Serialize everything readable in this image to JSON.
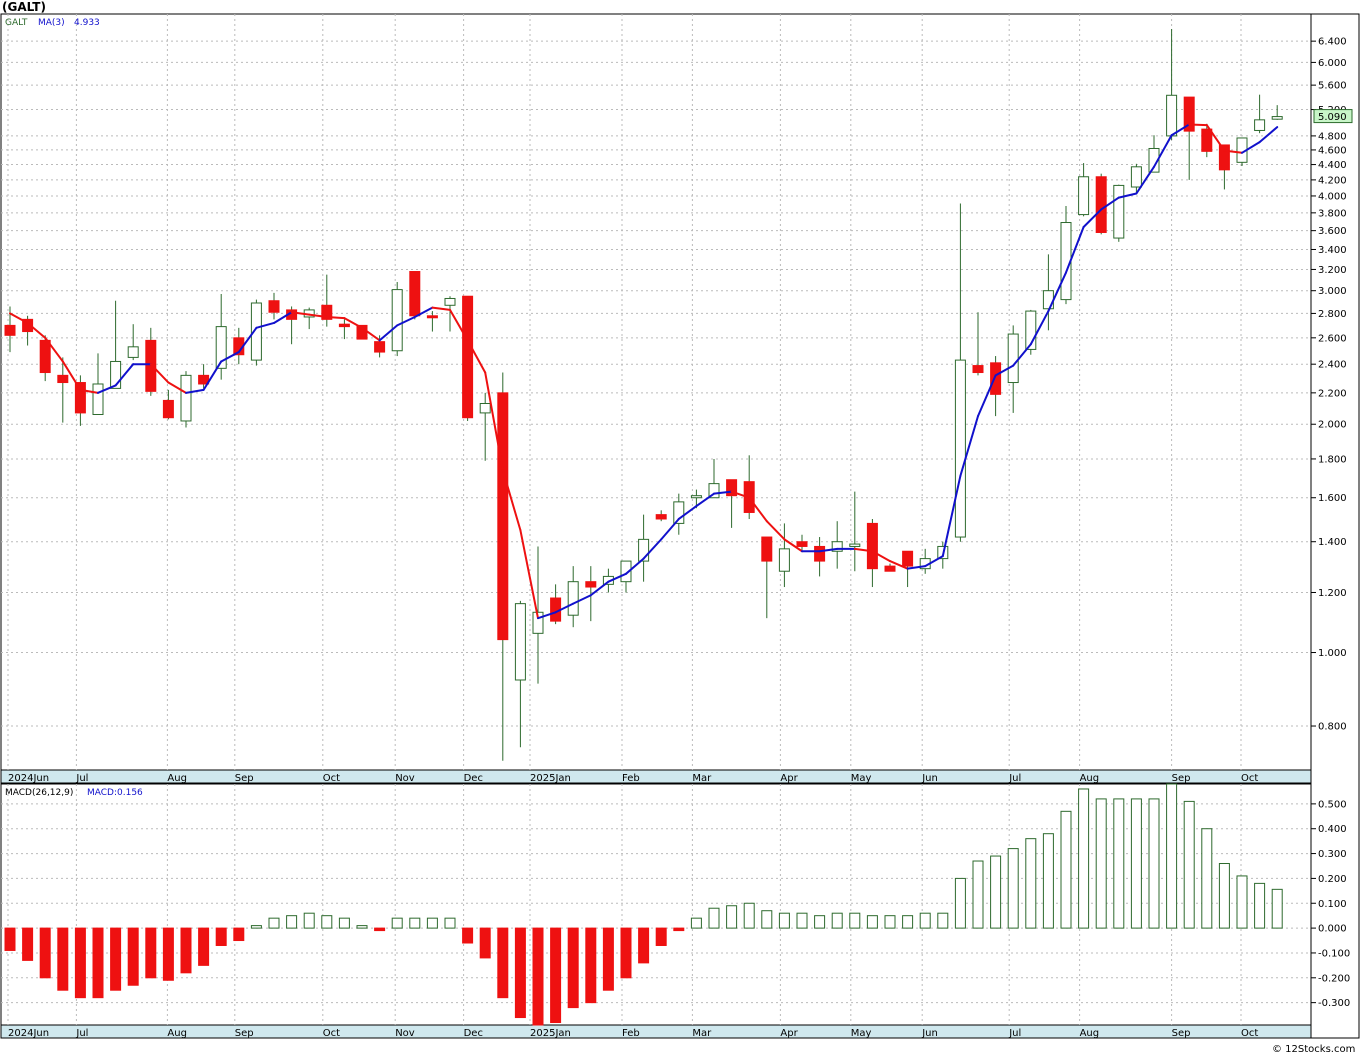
{
  "title": "(GALT)",
  "legend": {
    "symbol": "GALT",
    "ma_label": "MA(3)",
    "ma_value": "4.933",
    "macd_label": "MACD(26,12,9)",
    "macd_value": "MACD:0.156"
  },
  "last_price": "5.090",
  "watermark": "© 12Stocks.com",
  "colors": {
    "up": "#2d6a2d",
    "down": "#ee1111",
    "ma_up": "#1111cc",
    "ma_down": "#ee1111",
    "axis_band": "#cfe8ee",
    "last_price_bg": "#c8f5c8",
    "grid": "#bbbbbb"
  },
  "chart_data": [
    {
      "type": "candlestick",
      "period": "weekly",
      "y_scale": "log",
      "ylim": [
        0.7,
        6.95
      ],
      "y_ticks": [
        "0.800",
        "1.000",
        "1.200",
        "1.400",
        "1.600",
        "1.800",
        "2.000",
        "2.200",
        "2.400",
        "2.600",
        "2.800",
        "3.000",
        "3.200",
        "3.400",
        "3.600",
        "3.800",
        "4.000",
        "4.200",
        "4.400",
        "4.600",
        "4.800",
        "5.200",
        "5.600",
        "6.000",
        "6.400"
      ],
      "x_labels": [
        "2024Jun",
        "Jul",
        "Aug",
        "Sep",
        "Oct",
        "Nov",
        "Dec",
        "2025Jan",
        "Feb",
        "Mar",
        "Apr",
        "May",
        "Jun",
        "Jul",
        "Aug",
        "Sep",
        "Oct"
      ],
      "series": [
        {
          "name": "GALT",
          "ohlc": [
            [
              2.7,
              2.86,
              2.49,
              2.62
            ],
            [
              2.75,
              2.78,
              2.54,
              2.65
            ],
            [
              2.58,
              2.62,
              2.28,
              2.34
            ],
            [
              2.32,
              2.45,
              2.01,
              2.27
            ],
            [
              2.27,
              2.32,
              1.99,
              2.07
            ],
            [
              2.06,
              2.48,
              2.06,
              2.26
            ],
            [
              2.23,
              2.91,
              2.23,
              2.42
            ],
            [
              2.45,
              2.71,
              2.43,
              2.53
            ],
            [
              2.58,
              2.68,
              2.18,
              2.21
            ],
            [
              2.15,
              2.22,
              2.03,
              2.04
            ],
            [
              2.02,
              2.35,
              1.98,
              2.32
            ],
            [
              2.32,
              2.4,
              2.23,
              2.26
            ],
            [
              2.37,
              2.97,
              2.29,
              2.69
            ],
            [
              2.6,
              2.68,
              2.4,
              2.47
            ],
            [
              2.43,
              2.92,
              2.39,
              2.89
            ],
            [
              2.91,
              2.98,
              2.75,
              2.81
            ],
            [
              2.83,
              2.86,
              2.55,
              2.75
            ],
            [
              2.77,
              2.85,
              2.67,
              2.83
            ],
            [
              2.87,
              3.15,
              2.69,
              2.75
            ],
            [
              2.71,
              2.75,
              2.59,
              2.69
            ],
            [
              2.7,
              2.7,
              2.59,
              2.59
            ],
            [
              2.57,
              2.62,
              2.45,
              2.49
            ],
            [
              2.5,
              3.08,
              2.46,
              3.01
            ],
            [
              3.18,
              3.18,
              2.75,
              2.78
            ],
            [
              2.78,
              2.82,
              2.65,
              2.77
            ],
            [
              2.87,
              2.95,
              2.65,
              2.93
            ],
            [
              2.95,
              2.95,
              2.02,
              2.04
            ],
            [
              2.07,
              2.2,
              1.79,
              2.13
            ],
            [
              2.2,
              2.34,
              0.72,
              1.04
            ],
            [
              0.92,
              1.17,
              0.75,
              1.16
            ],
            [
              1.06,
              1.38,
              0.91,
              1.13
            ],
            [
              1.18,
              1.23,
              1.09,
              1.1
            ],
            [
              1.12,
              1.3,
              1.08,
              1.24
            ],
            [
              1.24,
              1.3,
              1.1,
              1.22
            ],
            [
              1.23,
              1.29,
              1.2,
              1.26
            ],
            [
              1.24,
              1.31,
              1.2,
              1.32
            ],
            [
              1.32,
              1.52,
              1.24,
              1.41
            ],
            [
              1.52,
              1.54,
              1.49,
              1.5
            ],
            [
              1.48,
              1.62,
              1.43,
              1.58
            ],
            [
              1.6,
              1.64,
              1.55,
              1.61
            ],
            [
              1.6,
              1.8,
              1.6,
              1.67
            ],
            [
              1.69,
              1.69,
              1.46,
              1.61
            ],
            [
              1.68,
              1.82,
              1.5,
              1.53
            ],
            [
              1.42,
              1.42,
              1.11,
              1.32
            ],
            [
              1.28,
              1.48,
              1.22,
              1.37
            ],
            [
              1.4,
              1.43,
              1.36,
              1.38
            ],
            [
              1.38,
              1.42,
              1.26,
              1.32
            ],
            [
              1.36,
              1.49,
              1.29,
              1.4
            ],
            [
              1.38,
              1.63,
              1.28,
              1.39
            ],
            [
              1.48,
              1.5,
              1.22,
              1.29
            ],
            [
              1.3,
              1.31,
              1.28,
              1.28
            ],
            [
              1.36,
              1.36,
              1.22,
              1.3
            ],
            [
              1.29,
              1.37,
              1.27,
              1.33
            ],
            [
              1.33,
              1.4,
              1.29,
              1.38
            ],
            [
              1.42,
              3.91,
              1.4,
              2.43
            ],
            [
              2.39,
              2.81,
              2.32,
              2.34
            ],
            [
              2.41,
              2.46,
              2.05,
              2.19
            ],
            [
              2.27,
              2.7,
              2.07,
              2.63
            ],
            [
              2.51,
              2.83,
              2.47,
              2.82
            ],
            [
              2.84,
              3.35,
              2.66,
              3.0
            ],
            [
              2.92,
              3.88,
              2.88,
              3.69
            ],
            [
              3.78,
              4.42,
              3.76,
              4.24
            ],
            [
              4.24,
              4.28,
              3.56,
              3.58
            ],
            [
              3.52,
              4.14,
              3.48,
              4.13
            ],
            [
              4.11,
              4.41,
              4.04,
              4.37
            ],
            [
              4.3,
              4.81,
              4.3,
              4.62
            ],
            [
              4.8,
              6.64,
              4.74,
              5.43
            ],
            [
              5.4,
              5.4,
              4.2,
              4.87
            ],
            [
              4.9,
              4.98,
              4.5,
              4.58
            ],
            [
              4.67,
              4.67,
              4.08,
              4.33
            ],
            [
              4.43,
              4.74,
              4.38,
              4.77
            ],
            [
              4.88,
              5.44,
              4.84,
              5.04
            ],
            [
              5.05,
              5.27,
              5.04,
              5.09
            ]
          ]
        },
        {
          "name": "MA(3)",
          "values": [
            2.8,
            2.72,
            2.6,
            2.42,
            2.22,
            2.2,
            2.25,
            2.4,
            2.4,
            2.27,
            2.2,
            2.22,
            2.42,
            2.49,
            2.68,
            2.72,
            2.81,
            2.79,
            2.77,
            2.76,
            2.68,
            2.58,
            2.7,
            2.77,
            2.85,
            2.83,
            2.58,
            2.34,
            1.74,
            1.45,
            1.11,
            1.13,
            1.16,
            1.19,
            1.24,
            1.27,
            1.33,
            1.41,
            1.5,
            1.56,
            1.62,
            1.63,
            1.6,
            1.49,
            1.41,
            1.36,
            1.36,
            1.37,
            1.37,
            1.36,
            1.32,
            1.29,
            1.3,
            1.34,
            1.71,
            2.05,
            2.32,
            2.39,
            2.55,
            2.82,
            3.17,
            3.64,
            3.84,
            3.98,
            4.03,
            4.37,
            4.81,
            4.97,
            4.96,
            4.59,
            4.56,
            4.71,
            4.93
          ]
        },
        {
          "name": "MACD(26,12,9)",
          "values": [
            -0.09,
            -0.13,
            -0.2,
            -0.25,
            -0.28,
            -0.28,
            -0.25,
            -0.23,
            -0.2,
            -0.21,
            -0.18,
            -0.15,
            -0.07,
            -0.05,
            0.01,
            0.04,
            0.05,
            0.06,
            0.05,
            0.04,
            0.01,
            -0.01,
            0.04,
            0.04,
            0.04,
            0.04,
            -0.06,
            -0.12,
            -0.28,
            -0.36,
            -0.39,
            -0.38,
            -0.32,
            -0.3,
            -0.25,
            -0.2,
            -0.14,
            -0.07,
            -0.01,
            0.04,
            0.08,
            0.09,
            0.1,
            0.07,
            0.06,
            0.06,
            0.05,
            0.06,
            0.06,
            0.05,
            0.05,
            0.05,
            0.06,
            0.06,
            0.2,
            0.27,
            0.29,
            0.32,
            0.36,
            0.38,
            0.47,
            0.56,
            0.52,
            0.52,
            0.52,
            0.52,
            0.58,
            0.51,
            0.4,
            0.26,
            0.21,
            0.18,
            0.156
          ]
        }
      ],
      "macd_ylim": [
        -0.39,
        0.58
      ],
      "macd_ticks": [
        "0.500",
        "0.400",
        "0.300",
        "0.200",
        "0.100",
        "0.000",
        "-0.100",
        "-0.200",
        "-0.300"
      ]
    }
  ]
}
